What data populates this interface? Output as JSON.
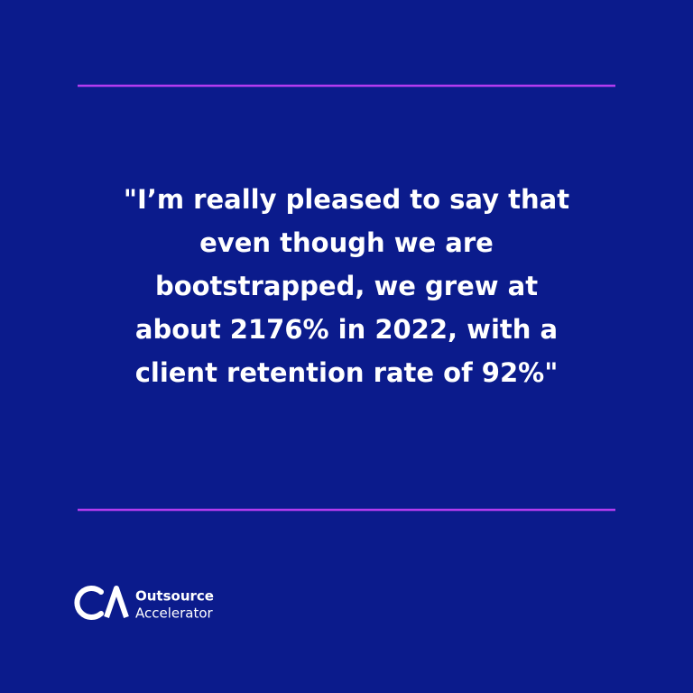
{
  "quote": {
    "lines": [
      "\"I’m really pleased to say that",
      "even though we are",
      "bootstrapped, we grew at",
      "about 2176% in 2022, with a",
      "client retention rate of 92%\""
    ]
  },
  "logo": {
    "line1": "Outsource",
    "line2": "Accelerator"
  }
}
